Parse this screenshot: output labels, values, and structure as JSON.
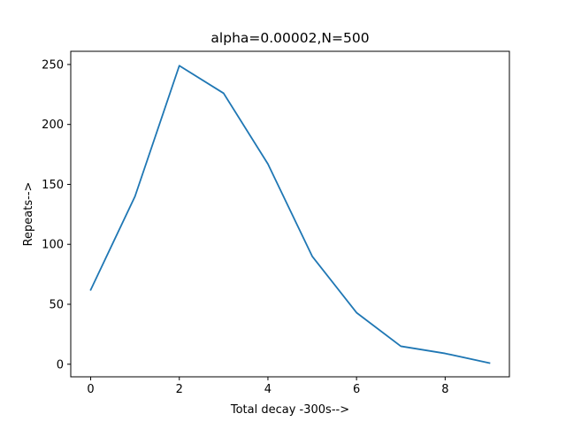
{
  "chart_data": {
    "type": "line",
    "title": "alpha=0.00002,N=500",
    "xlabel": "Total decay -300s-->",
    "ylabel": "Repeats-->",
    "xlim": [
      -0.45,
      9.45
    ],
    "ylim": [
      -10.5,
      261
    ],
    "xticks": [
      0,
      2,
      4,
      6,
      8
    ],
    "yticks": [
      0,
      50,
      100,
      150,
      200,
      250
    ],
    "grid": false,
    "series": [
      {
        "x": [
          0,
          1,
          2,
          3,
          4,
          5,
          6,
          7,
          8,
          9
        ],
        "y": [
          62,
          140,
          249,
          226,
          167,
          90,
          43,
          15,
          9,
          1
        ],
        "color": "#1f77b4"
      }
    ]
  }
}
